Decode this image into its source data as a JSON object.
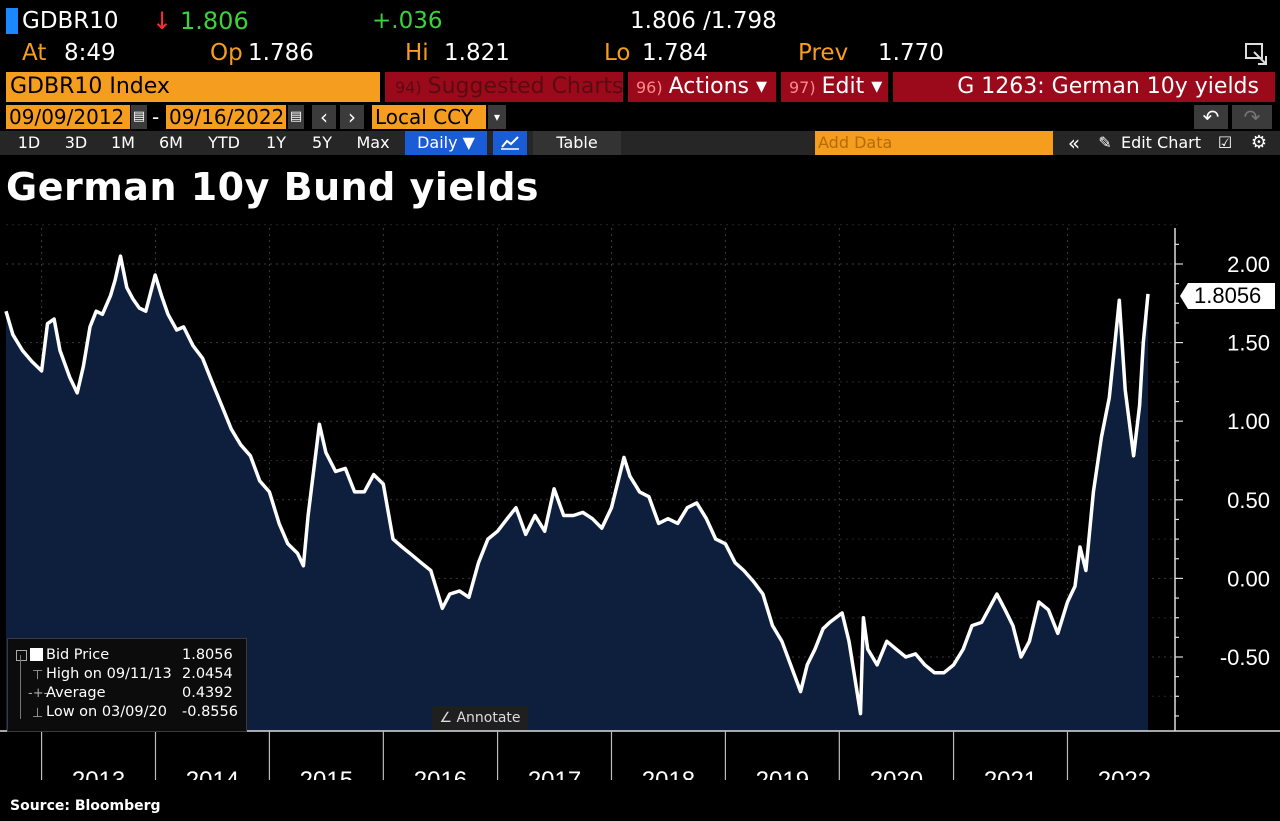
{
  "quote": {
    "ticker": "GDBR10",
    "arrow": "↓",
    "last": "1.806",
    "change": "+.036",
    "bid_ask": "1.806 /1.798",
    "at_label": "At",
    "at": "8:49",
    "op_label": "Op",
    "op": "1.786",
    "hi_label": "Hi",
    "hi": "1.821",
    "lo_label": "Lo",
    "lo": "1.784",
    "prev_label": "Prev",
    "prev": "1.770"
  },
  "bar": {
    "security": "GDBR10 Index",
    "suggested_num": "94)",
    "suggested": "Suggested Charts",
    "actions_num": "96)",
    "actions": "Actions ▾",
    "edit_num": "97)",
    "edit": "Edit ▾",
    "chart_name": "G 1263: German 10y yields"
  },
  "range": {
    "start": "09/09/2012",
    "dash": "-",
    "end": "09/16/2022",
    "currency": "Local CCY"
  },
  "toolbar": {
    "periods": [
      "1D",
      "3D",
      "1M",
      "6M",
      "YTD",
      "1Y",
      "5Y",
      "Max"
    ],
    "frequency": "Daily ▼",
    "table": "Table",
    "add_data_placeholder": "Add Data",
    "edit_chart": "Edit Chart"
  },
  "colors": {
    "accent": "#f59d1e",
    "header_red": "#9b0a1a",
    "line": "#ffffff",
    "fill": "#0d1f3d",
    "selected": "#1a5bd6"
  },
  "chart_data": {
    "type": "area",
    "title": "German 10y Bund yields",
    "xlabel": "",
    "ylabel": "",
    "ylim": [
      -0.95,
      2.3
    ],
    "y_ticks": [
      "2.00",
      "1.50",
      "1.00",
      "0.50",
      "0.00",
      "-0.50"
    ],
    "y_tick_values": [
      2.0,
      1.5,
      1.0,
      0.5,
      0.0,
      -0.5
    ],
    "x_ticks": [
      "2013",
      "2014",
      "2015",
      "2016",
      "2017",
      "2018",
      "2019",
      "2020",
      "2021",
      "2022"
    ],
    "x_range": [
      "2012-09-09",
      "2022-09-16"
    ],
    "last_value_label": "1.8056",
    "series": [
      {
        "points": [
          [
            "2012-09-09",
            1.7
          ],
          [
            "2012-10-01",
            1.55
          ],
          [
            "2012-11-01",
            1.45
          ],
          [
            "2012-12-01",
            1.38
          ],
          [
            "2013-01-01",
            1.32
          ],
          [
            "2013-01-20",
            1.62
          ],
          [
            "2013-02-10",
            1.65
          ],
          [
            "2013-03-01",
            1.45
          ],
          [
            "2013-04-01",
            1.28
          ],
          [
            "2013-04-25",
            1.18
          ],
          [
            "2013-05-15",
            1.35
          ],
          [
            "2013-06-05",
            1.6
          ],
          [
            "2013-06-25",
            1.7
          ],
          [
            "2013-07-15",
            1.68
          ],
          [
            "2013-08-10",
            1.8
          ],
          [
            "2013-08-25",
            1.9
          ],
          [
            "2013-09-11",
            2.05
          ],
          [
            "2013-10-01",
            1.85
          ],
          [
            "2013-10-20",
            1.78
          ],
          [
            "2013-11-10",
            1.72
          ],
          [
            "2013-12-01",
            1.7
          ],
          [
            "2013-12-31",
            1.93
          ],
          [
            "2014-01-20",
            1.8
          ],
          [
            "2014-02-10",
            1.68
          ],
          [
            "2014-03-10",
            1.58
          ],
          [
            "2014-04-01",
            1.6
          ],
          [
            "2014-05-01",
            1.48
          ],
          [
            "2014-06-01",
            1.4
          ],
          [
            "2014-07-01",
            1.25
          ],
          [
            "2014-08-01",
            1.1
          ],
          [
            "2014-09-01",
            0.95
          ],
          [
            "2014-10-01",
            0.85
          ],
          [
            "2014-11-01",
            0.78
          ],
          [
            "2014-12-01",
            0.62
          ],
          [
            "2015-01-01",
            0.55
          ],
          [
            "2015-02-01",
            0.35
          ],
          [
            "2015-03-01",
            0.22
          ],
          [
            "2015-04-01",
            0.16
          ],
          [
            "2015-04-20",
            0.08
          ],
          [
            "2015-05-05",
            0.4
          ],
          [
            "2015-06-10",
            0.98
          ],
          [
            "2015-07-01",
            0.8
          ],
          [
            "2015-08-01",
            0.68
          ],
          [
            "2015-09-01",
            0.7
          ],
          [
            "2015-10-01",
            0.55
          ],
          [
            "2015-11-01",
            0.55
          ],
          [
            "2015-12-01",
            0.66
          ],
          [
            "2016-01-01",
            0.6
          ],
          [
            "2016-02-01",
            0.25
          ],
          [
            "2016-03-01",
            0.2
          ],
          [
            "2016-04-01",
            0.15
          ],
          [
            "2016-05-01",
            0.1
          ],
          [
            "2016-06-01",
            0.05
          ],
          [
            "2016-07-08",
            -0.19
          ],
          [
            "2016-08-01",
            -0.1
          ],
          [
            "2016-09-01",
            -0.08
          ],
          [
            "2016-10-01",
            -0.12
          ],
          [
            "2016-11-01",
            0.1
          ],
          [
            "2016-12-01",
            0.25
          ],
          [
            "2017-01-01",
            0.3
          ],
          [
            "2017-02-01",
            0.38
          ],
          [
            "2017-03-01",
            0.45
          ],
          [
            "2017-04-01",
            0.28
          ],
          [
            "2017-05-01",
            0.4
          ],
          [
            "2017-06-01",
            0.3
          ],
          [
            "2017-07-01",
            0.57
          ],
          [
            "2017-08-01",
            0.4
          ],
          [
            "2017-09-01",
            0.4
          ],
          [
            "2017-10-01",
            0.42
          ],
          [
            "2017-11-01",
            0.38
          ],
          [
            "2017-12-01",
            0.32
          ],
          [
            "2018-01-01",
            0.45
          ],
          [
            "2018-02-10",
            0.77
          ],
          [
            "2018-03-01",
            0.65
          ],
          [
            "2018-04-01",
            0.55
          ],
          [
            "2018-05-01",
            0.52
          ],
          [
            "2018-06-01",
            0.35
          ],
          [
            "2018-07-01",
            0.38
          ],
          [
            "2018-08-01",
            0.35
          ],
          [
            "2018-09-01",
            0.45
          ],
          [
            "2018-10-01",
            0.48
          ],
          [
            "2018-11-01",
            0.38
          ],
          [
            "2018-12-01",
            0.25
          ],
          [
            "2019-01-01",
            0.22
          ],
          [
            "2019-02-01",
            0.1
          ],
          [
            "2019-03-01",
            0.05
          ],
          [
            "2019-04-01",
            -0.02
          ],
          [
            "2019-05-01",
            -0.1
          ],
          [
            "2019-06-01",
            -0.3
          ],
          [
            "2019-07-01",
            -0.4
          ],
          [
            "2019-08-30",
            -0.72
          ],
          [
            "2019-09-20",
            -0.55
          ],
          [
            "2019-10-15",
            -0.45
          ],
          [
            "2019-11-10",
            -0.32
          ],
          [
            "2019-12-01",
            -0.28
          ],
          [
            "2020-01-10",
            -0.22
          ],
          [
            "2020-02-01",
            -0.4
          ],
          [
            "2020-03-09",
            -0.86
          ],
          [
            "2020-03-18",
            -0.25
          ],
          [
            "2020-04-01",
            -0.45
          ],
          [
            "2020-05-01",
            -0.55
          ],
          [
            "2020-06-01",
            -0.4
          ],
          [
            "2020-07-01",
            -0.45
          ],
          [
            "2020-08-01",
            -0.5
          ],
          [
            "2020-09-01",
            -0.48
          ],
          [
            "2020-10-01",
            -0.55
          ],
          [
            "2020-11-01",
            -0.6
          ],
          [
            "2020-12-01",
            -0.6
          ],
          [
            "2021-01-01",
            -0.55
          ],
          [
            "2021-02-01",
            -0.45
          ],
          [
            "2021-03-01",
            -0.3
          ],
          [
            "2021-04-01",
            -0.28
          ],
          [
            "2021-05-20",
            -0.1
          ],
          [
            "2021-06-15",
            -0.2
          ],
          [
            "2021-07-10",
            -0.3
          ],
          [
            "2021-08-05",
            -0.5
          ],
          [
            "2021-09-01",
            -0.4
          ],
          [
            "2021-10-01",
            -0.15
          ],
          [
            "2021-11-01",
            -0.2
          ],
          [
            "2021-12-01",
            -0.35
          ],
          [
            "2022-01-01",
            -0.15
          ],
          [
            "2022-01-25",
            -0.05
          ],
          [
            "2022-02-10",
            0.2
          ],
          [
            "2022-03-01",
            0.05
          ],
          [
            "2022-03-25",
            0.55
          ],
          [
            "2022-04-20",
            0.9
          ],
          [
            "2022-05-15",
            1.15
          ],
          [
            "2022-06-16",
            1.77
          ],
          [
            "2022-07-05",
            1.2
          ],
          [
            "2022-08-01",
            0.78
          ],
          [
            "2022-08-20",
            1.1
          ],
          [
            "2022-09-01",
            1.5
          ],
          [
            "2022-09-16",
            1.81
          ]
        ]
      }
    ]
  },
  "legend": {
    "rows": [
      {
        "key": "Bid Price",
        "value": "1.8056"
      },
      {
        "key": "High on 09/11/13",
        "value": "2.0454"
      },
      {
        "key": "Average",
        "value": "0.4392"
      },
      {
        "key": "Low on 03/09/20",
        "value": "-0.8556"
      }
    ]
  },
  "annotate": "Annotate",
  "source": "Source: Bloomberg"
}
